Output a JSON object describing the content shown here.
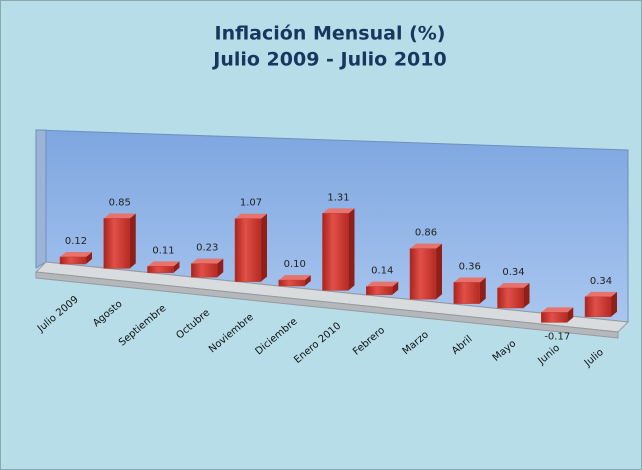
{
  "chart_data": {
    "type": "bar3d",
    "title": "Inflación Mensual (%)",
    "subtitle": "Julio 2009 - Julio 2010",
    "categories": [
      "Julio 2009",
      "Agosto",
      "Septiembre",
      "Octubre",
      "Noviembre",
      "Diciembre",
      "Enero 2010",
      "Febrero",
      "Marzo",
      "Abril",
      "Mayo",
      "Junio",
      "Julio"
    ],
    "values": [
      0.12,
      0.85,
      0.11,
      0.23,
      1.07,
      0.1,
      1.31,
      0.14,
      0.86,
      0.36,
      0.34,
      -0.17,
      0.34
    ],
    "value_labels": [
      "0.12",
      "0.85",
      "0.11",
      "0.23",
      "1.07",
      "0.10",
      "1.31",
      "0.14",
      "0.86",
      "0.36",
      "0.34",
      "-0.17",
      "0.34"
    ],
    "color": "#c0392f"
  }
}
